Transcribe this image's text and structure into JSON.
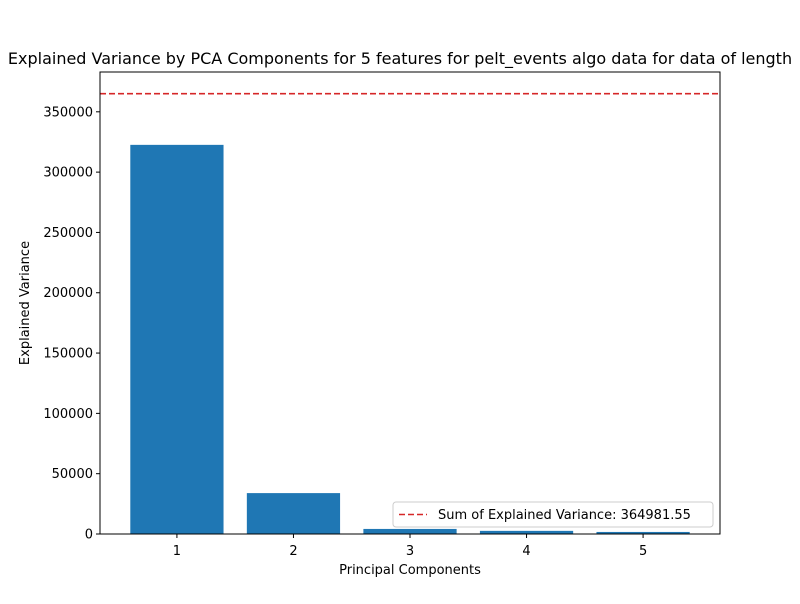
{
  "chart_data": {
    "type": "bar",
    "title": "Explained Variance by PCA Components for 5 features for pelt_events algo data for data of length",
    "xlabel": "Principal Components",
    "ylabel": "Explained Variance",
    "categories": [
      "1",
      "2",
      "3",
      "4",
      "5"
    ],
    "values": [
      322600,
      33900,
      4200,
      2600,
      1700
    ],
    "ylim": [
      0,
      383000
    ],
    "xlim": [
      0.34,
      5.66
    ],
    "yticks": [
      0,
      50000,
      100000,
      150000,
      200000,
      250000,
      300000,
      350000
    ],
    "ytick_labels": [
      "0",
      "50000",
      "100000",
      "150000",
      "200000",
      "250000",
      "300000",
      "350000"
    ],
    "bar_color": "#1f77b4",
    "reference_line": {
      "value": 364981.55,
      "color": "#d62728",
      "style": "dashed",
      "label": "Sum of Explained Variance: 364981.55"
    },
    "legend_position": "lower-right",
    "grid": false
  }
}
